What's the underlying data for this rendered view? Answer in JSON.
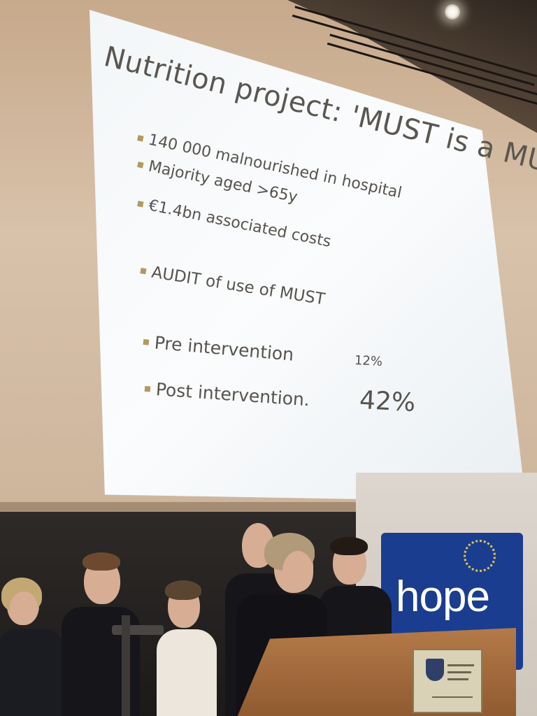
{
  "slide": {
    "title": "Nutrition project: 'MUST is a MUST!'",
    "bullets": [
      "140 000 malnourished in hospital",
      "Majority aged >65y",
      "€1.4bn associated costs",
      "AUDIT of use of MUST",
      "Pre intervention",
      "Post intervention."
    ],
    "pre_value": "12%",
    "post_value": "42%"
  },
  "banner": {
    "logo_text": "hope",
    "logo_color": "#1a3d8f",
    "star_color": "#e2c54a"
  },
  "podium": {
    "plaque_icon": "crest-icon"
  }
}
